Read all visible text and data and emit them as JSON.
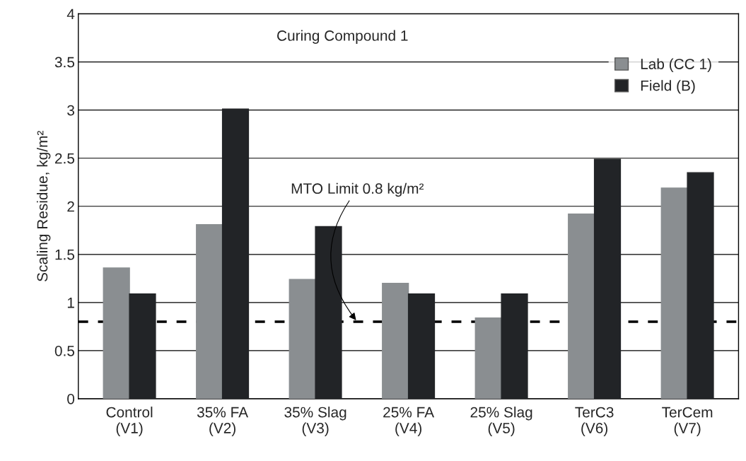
{
  "chart_data": {
    "type": "bar",
    "title": "Curing Compound 1",
    "ylabel": "Scaling Residue, kg/m²",
    "categories": [
      "Control\n(V1)",
      "35% FA\n(V2)",
      "35% Slag\n(V3)",
      "25% FA\n(V4)",
      "25% Slag\n(V5)",
      "TerC3\n(V6)",
      "TerCem\n(V7)"
    ],
    "series": [
      {
        "name": "Lab (CC 1)",
        "color": "#8a8e91",
        "values": [
          1.36,
          1.81,
          1.24,
          1.2,
          0.84,
          1.92,
          2.19
        ]
      },
      {
        "name": "Field (B)",
        "color": "#222427",
        "values": [
          1.09,
          3.01,
          1.79,
          1.09,
          1.09,
          2.49,
          2.35
        ]
      }
    ],
    "ylim": [
      0,
      4
    ],
    "yticks": [
      0,
      0.5,
      1,
      1.5,
      2,
      2.5,
      3,
      3.5,
      4
    ],
    "grid": "y",
    "legend": "top right",
    "ref_lines": [
      {
        "axis": "y",
        "value": 0.8,
        "label": "MTO Limit 0.8 kg/m²",
        "color": "#000000",
        "line_style": "dashed"
      }
    ]
  }
}
